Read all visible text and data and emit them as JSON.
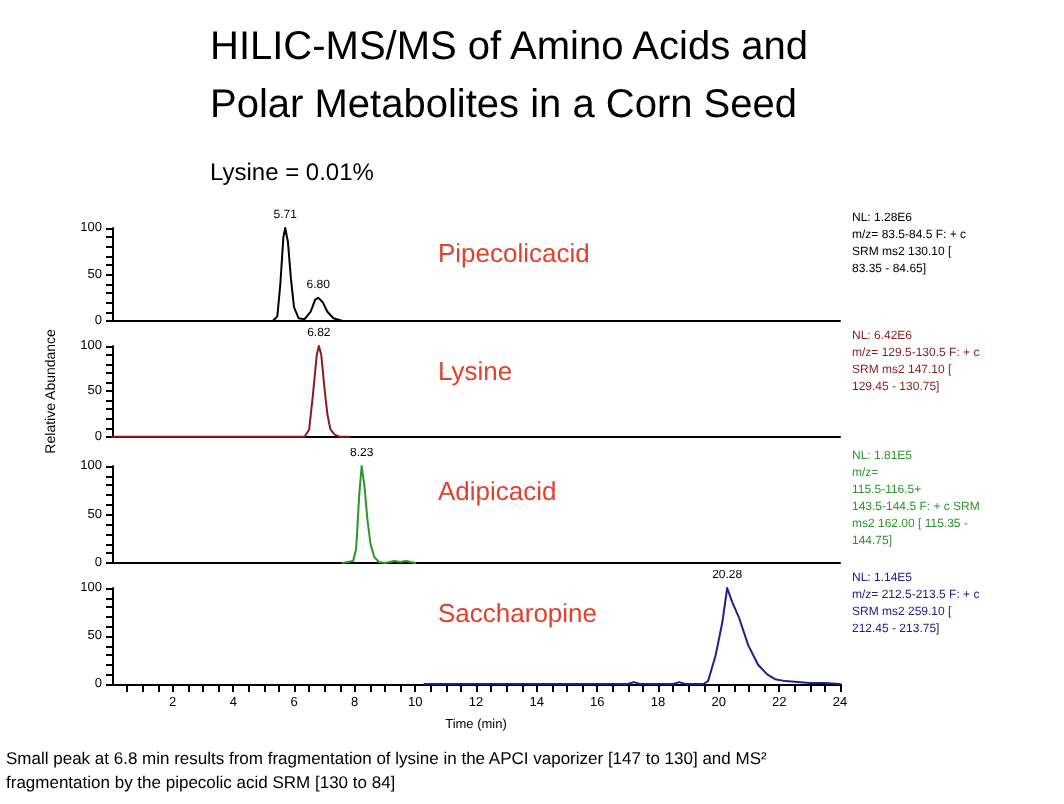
{
  "chart_data": [
    {
      "type": "line",
      "title": "HILIC-MS/MS of Amino Acids and Polar Metabolites in a Corn Seed",
      "subtitle": "Lysine = 0.01%",
      "xlim": [
        0,
        24
      ],
      "ylim": [
        0,
        100
      ],
      "yticks": [
        0,
        {
          "value": 10,
          "label": null
        },
        {
          "value": 20,
          "label": null
        },
        {
          "value": 30,
          "label": null
        },
        {
          "value": 40,
          "label": null
        },
        50,
        {
          "value": 60,
          "label": null
        },
        {
          "value": 70,
          "label": null
        },
        {
          "value": 80,
          "label": null
        },
        {
          "value": 90,
          "label": null
        },
        100
      ],
      "tick_labels": "y",
      "marker": "none",
      "series": [
        {
          "name": "Pipecolicacid",
          "color": "#000000",
          "x": [
            0,
            5.3,
            5.45,
            5.55,
            5.65,
            5.71,
            5.8,
            5.9,
            6.0,
            6.15,
            6.35,
            6.55,
            6.7,
            6.8,
            6.95,
            7.1,
            7.3,
            7.6,
            7.8
          ],
          "values": [
            0,
            0,
            5,
            40,
            90,
            100,
            85,
            45,
            15,
            3,
            2,
            10,
            23,
            25,
            20,
            10,
            3,
            0,
            0
          ]
        }
      ],
      "annotations": [
        {
          "text": "5.71",
          "x": 5.71,
          "y": 100
        },
        {
          "text": "6.80",
          "x": 6.8,
          "y": 25
        },
        "NL: 1.28E6\nm/z= 83.5-84.5 F: + c\nSRM ms2 130.10 [\n83.35 - 84.65]"
      ]
    },
    {
      "type": "line",
      "ylabel": "Relative Abundance",
      "xlim": [
        0,
        24
      ],
      "ylim": [
        0,
        100
      ],
      "yticks": [
        0,
        {
          "value": 10,
          "label": null
        },
        {
          "value": 20,
          "label": null
        },
        {
          "value": 30,
          "label": null
        },
        {
          "value": 40,
          "label": null
        },
        50,
        {
          "value": 60,
          "label": null
        },
        {
          "value": 70,
          "label": null
        },
        {
          "value": 80,
          "label": null
        },
        {
          "value": 90,
          "label": null
        },
        100
      ],
      "tick_labels": "y",
      "marker": "none",
      "series": [
        {
          "name": "Lysine",
          "color": "#8b1c1c",
          "x": [
            0,
            6.35,
            6.5,
            6.62,
            6.75,
            6.82,
            6.9,
            7.0,
            7.1,
            7.2,
            7.35,
            7.5,
            7.8
          ],
          "values": [
            0,
            0,
            8,
            45,
            90,
            100,
            90,
            55,
            25,
            8,
            2,
            0,
            0
          ]
        }
      ],
      "annotations": [
        {
          "text": "6.82",
          "x": 6.82,
          "y": 100
        },
        "NL: 6.42E6\nm/z= 129.5-130.5 F: + c\nSRM ms2 147.10 [\n129.45 - 130.75]"
      ]
    },
    {
      "type": "line",
      "xlim": [
        0,
        24
      ],
      "ylim": [
        0,
        100
      ],
      "yticks": [
        0,
        {
          "value": 10,
          "label": null
        },
        {
          "value": 20,
          "label": null
        },
        {
          "value": 30,
          "label": null
        },
        {
          "value": 40,
          "label": null
        },
        50,
        {
          "value": 60,
          "label": null
        },
        {
          "value": 70,
          "label": null
        },
        {
          "value": 80,
          "label": null
        },
        {
          "value": 90,
          "label": null
        },
        100
      ],
      "tick_labels": "y",
      "marker": "none",
      "series": [
        {
          "name": "Adipicacid",
          "color": "#2b962b",
          "x": [
            7.6,
            7.95,
            8.05,
            8.15,
            8.23,
            8.32,
            8.42,
            8.52,
            8.65,
            8.8,
            9.0,
            9.3,
            9.5,
            9.7,
            10.0
          ],
          "values": [
            0,
            2,
            15,
            70,
            100,
            80,
            45,
            20,
            6,
            1,
            0,
            2,
            1,
            2,
            0
          ]
        }
      ],
      "annotations": [
        {
          "text": "8.23",
          "x": 8.23,
          "y": 100
        },
        "NL: 1.81E5\nm/z=\n115.5-116.5+\n143.5-144.5 F: + c SRM\nms2 162.00 [ 115.35 -\n144.75]"
      ]
    },
    {
      "type": "line",
      "xlabel": "Time (min)",
      "xlim": [
        0,
        24
      ],
      "ylim": [
        0,
        100
      ],
      "yticks": [
        0,
        {
          "value": 10,
          "label": null
        },
        {
          "value": 20,
          "label": null
        },
        {
          "value": 30,
          "label": null
        },
        {
          "value": 40,
          "label": null
        },
        50,
        {
          "value": 60,
          "label": null
        },
        {
          "value": 70,
          "label": null
        },
        {
          "value": 80,
          "label": null
        },
        {
          "value": 90,
          "label": null
        },
        100
      ],
      "xticks": [
        {
          "value": 0.5,
          "label": null
        },
        {
          "value": 1,
          "label": null
        },
        {
          "value": 1.5,
          "label": null
        },
        2,
        {
          "value": 2.5,
          "label": null
        },
        {
          "value": 3,
          "label": null
        },
        {
          "value": 3.5,
          "label": null
        },
        4,
        {
          "value": 4.5,
          "label": null
        },
        {
          "value": 5,
          "label": null
        },
        {
          "value": 5.5,
          "label": null
        },
        6,
        {
          "value": 6.5,
          "label": null
        },
        {
          "value": 7,
          "label": null
        },
        {
          "value": 7.5,
          "label": null
        },
        8,
        {
          "value": 8.5,
          "label": null
        },
        {
          "value": 9,
          "label": null
        },
        {
          "value": 9.5,
          "label": null
        },
        10,
        {
          "value": 10.5,
          "label": null
        },
        {
          "value": 11,
          "label": null
        },
        {
          "value": 11.5,
          "label": null
        },
        12,
        {
          "value": 12.5,
          "label": null
        },
        {
          "value": 13,
          "label": null
        },
        {
          "value": 13.5,
          "label": null
        },
        14,
        {
          "value": 14.5,
          "label": null
        },
        {
          "value": 15,
          "label": null
        },
        {
          "value": 15.5,
          "label": null
        },
        16,
        {
          "value": 16.5,
          "label": null
        },
        {
          "value": 17,
          "label": null
        },
        {
          "value": 17.5,
          "label": null
        },
        18,
        {
          "value": 18.5,
          "label": null
        },
        {
          "value": 19,
          "label": null
        },
        {
          "value": 19.5,
          "label": null
        },
        20,
        {
          "value": 20.5,
          "label": null
        },
        {
          "value": 21,
          "label": null
        },
        {
          "value": 21.5,
          "label": null
        },
        22,
        {
          "value": 22.5,
          "label": null
        },
        {
          "value": 23,
          "label": null
        },
        {
          "value": 23.5,
          "label": null
        },
        24
      ],
      "marker": "none",
      "series": [
        {
          "name": "Saccharopine",
          "color": "#20208c",
          "x": [
            10.3,
            17.0,
            17.2,
            17.4,
            18.5,
            18.7,
            18.9,
            19.5,
            19.65,
            19.9,
            20.12,
            20.28,
            20.45,
            20.66,
            20.98,
            21.3,
            21.6,
            21.86,
            22.2,
            22.6,
            23.0,
            23.5,
            24.0
          ],
          "values": [
            0,
            0,
            2,
            0,
            0,
            2,
            0,
            0,
            3,
            30,
            64,
            100,
            85,
            70,
            40,
            20,
            10,
            5,
            3,
            2,
            1,
            1,
            0
          ]
        }
      ],
      "annotations": [
        {
          "text": "20.28",
          "x": 20.28,
          "y": 100
        },
        "NL: 1.14E5\nm/z= 212.5-213.5 F: + c\nSRM ms2 259.10 [\n212.45 - 213.75]",
        "Small peak at 6.8 min results from fragmentation of lysine in the APCI vaporizer [147 to 130] and MS² fragmentation by the pipecolic acid SRM [130 to 84]"
      ]
    }
  ]
}
